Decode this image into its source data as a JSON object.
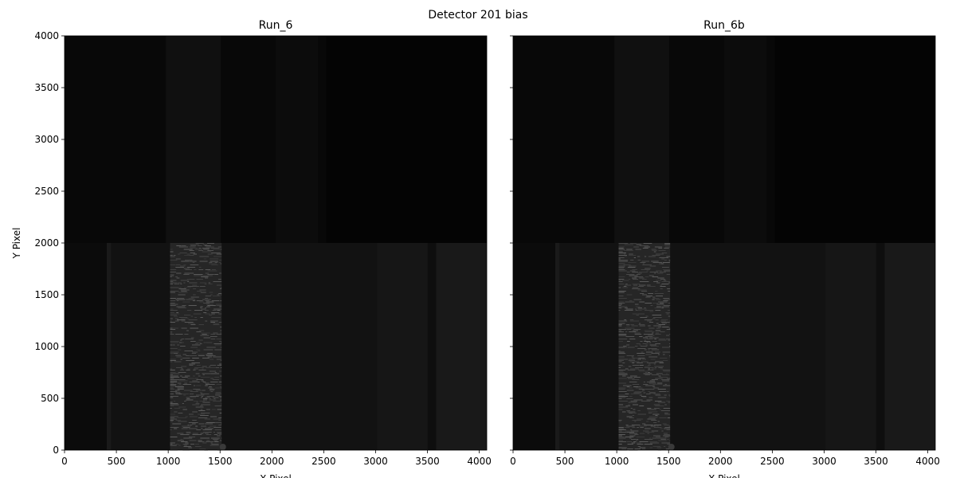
{
  "title": "Detector 201 bias",
  "chart_data": [
    {
      "type": "image",
      "title": "Run_6",
      "xlabel": "X Pixel",
      "ylabel": "Y Pixel",
      "xlim": [
        0,
        4072
      ],
      "ylim": [
        0,
        4000
      ],
      "xticks": [
        0,
        500,
        1000,
        1500,
        2000,
        2500,
        3000,
        3500,
        4000
      ],
      "yticks": [
        0,
        500,
        1000,
        1500,
        2000,
        2500,
        3000,
        3500,
        4000
      ]
    },
    {
      "type": "image",
      "title": "Run_6b",
      "xlabel": "X Pixel",
      "sharey": true,
      "xlim": [
        0,
        4072
      ],
      "ylim": [
        0,
        4000
      ],
      "xticks": [
        0,
        500,
        1000,
        1500,
        2000,
        2500,
        3000,
        3500,
        4000
      ]
    }
  ]
}
